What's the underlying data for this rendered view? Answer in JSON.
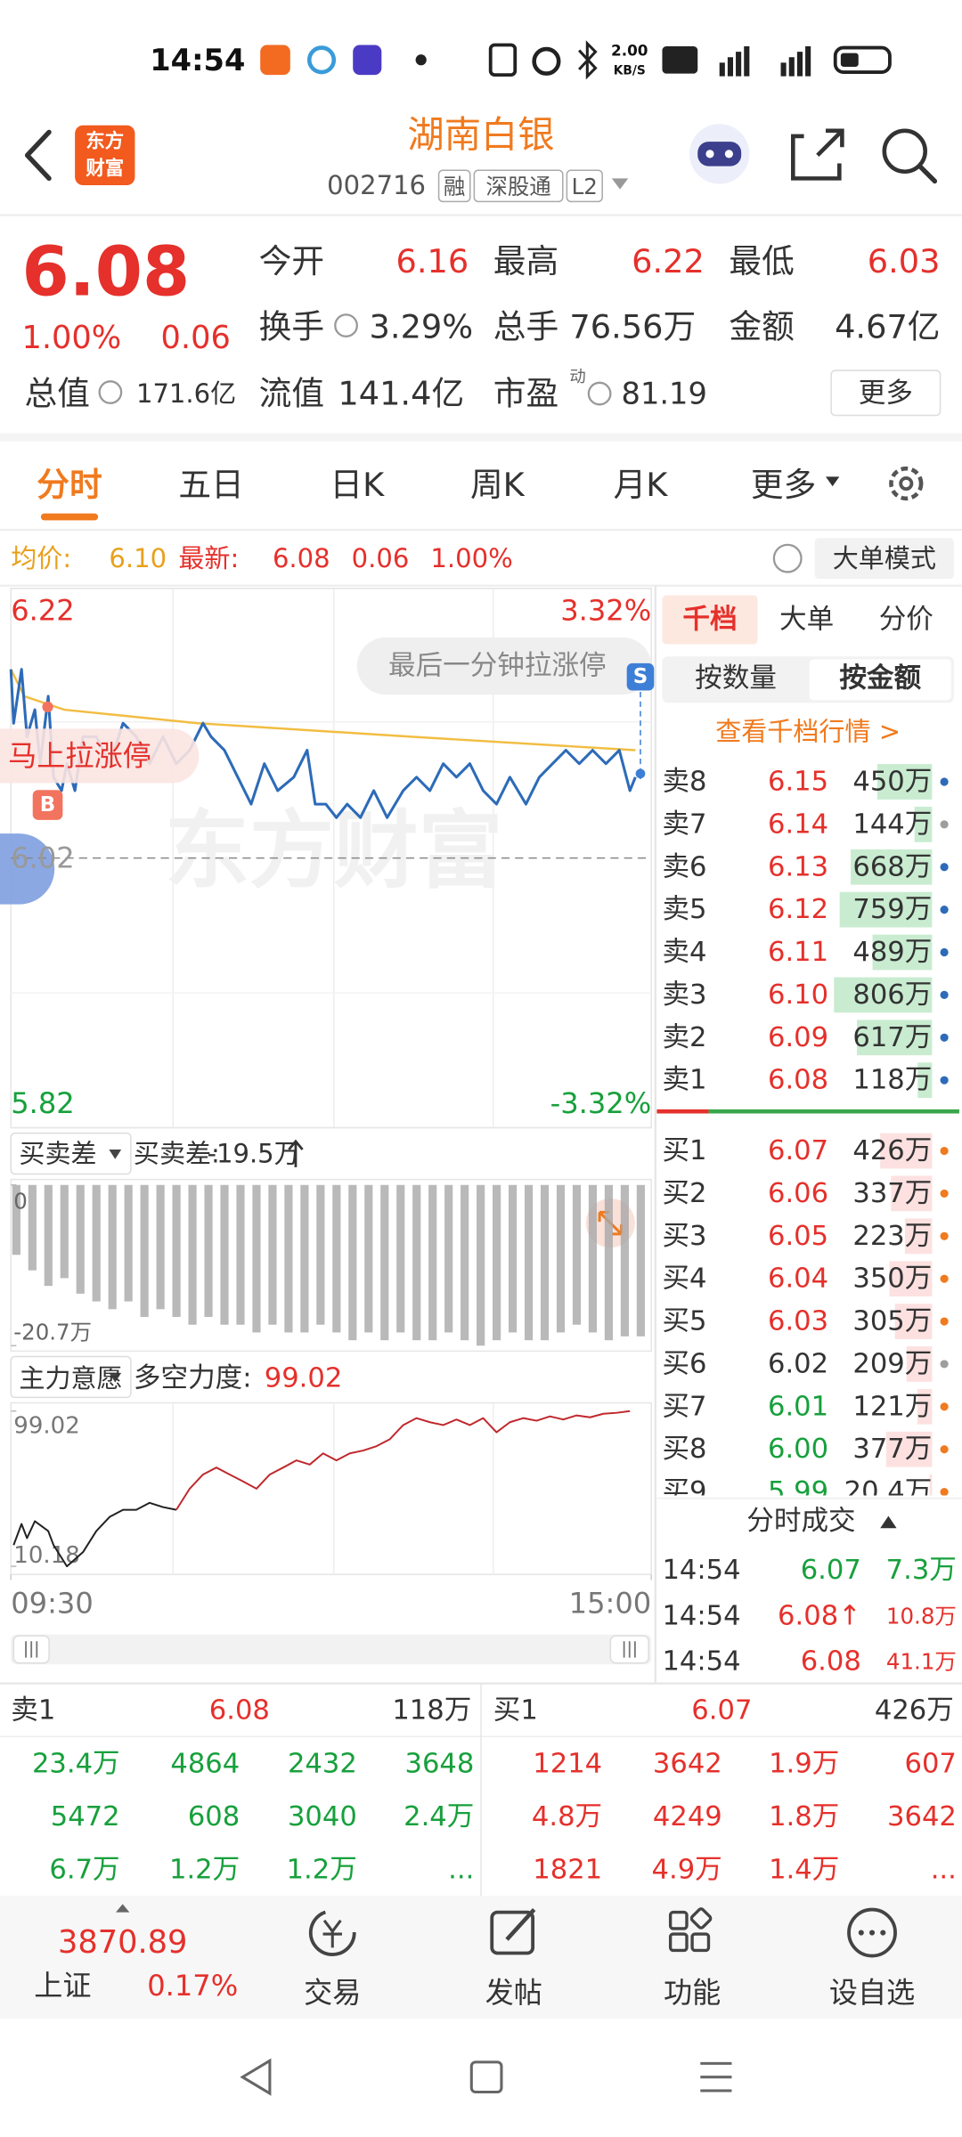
{
  "status_bar": {
    "time": "14:54",
    "net_speed": [
      "2.00",
      "KB/S"
    ]
  },
  "header": {
    "logo": [
      "东方",
      "财富"
    ],
    "title": "湖南白银",
    "code": "002716",
    "tags": [
      "融",
      "深股通",
      "L2"
    ]
  },
  "quote": {
    "price": "6.08",
    "change_pct": "1.00%",
    "change": "0.06",
    "fields": [
      {
        "label": "今开",
        "value": "6.16"
      },
      {
        "label": "最高",
        "value": "6.22"
      },
      {
        "label": "最低",
        "value": "6.03"
      },
      {
        "label": "换手",
        "value": "3.29%"
      },
      {
        "label": "总手",
        "value": "76.56万"
      },
      {
        "label": "金额",
        "value": "4.67亿"
      },
      {
        "label": "总值",
        "value": "171.6亿"
      },
      {
        "label": "流值",
        "value": "141.4亿"
      },
      {
        "label": "市盈",
        "value": "81.19"
      }
    ],
    "pe_note": "动",
    "more": "更多"
  },
  "tabs": {
    "items": [
      "分时",
      "五日",
      "日K",
      "周K",
      "月K",
      "更多"
    ],
    "active": 0
  },
  "info_bar": {
    "avg_label": "均价:",
    "avg": "6.10",
    "latest_label": "最新:",
    "latest": "6.08",
    "change": "0.06",
    "change_pct": "1.00%",
    "mode": "大单模式"
  },
  "intraday_chart": {
    "type": "line",
    "xlim": [
      0,
      240
    ],
    "xticks": [
      {
        "value": 0,
        "label": "09:30"
      },
      {
        "value": 240,
        "label": "15:00"
      }
    ],
    "ylim": [
      5.82,
      6.22
    ],
    "yticks": [
      5.82,
      6.02,
      6.22
    ],
    "y2lim": [
      -3.32,
      3.32
    ],
    "y2ticks": [
      {
        "value": -3.32,
        "label": "-3.32%"
      },
      {
        "value": 3.32,
        "label": "3.32%"
      }
    ],
    "series": [
      {
        "color": "#2d6bb8",
        "x": [
          0,
          1,
          4,
          6,
          9,
          11,
          14,
          16,
          19,
          21,
          24,
          27,
          32,
          37,
          42,
          47,
          52,
          57,
          62,
          67,
          72,
          75,
          80,
          85,
          90,
          95,
          100,
          106,
          111,
          114,
          118,
          122,
          126,
          131,
          136,
          141,
          147,
          152,
          157,
          162,
          167,
          172,
          177,
          182,
          187,
          193,
          198,
          203,
          208,
          213,
          218,
          223,
          228,
          232,
          234
        ],
        "values": [
          6.16,
          6.12,
          6.16,
          6.11,
          6.13,
          6.09,
          6.14,
          6.08,
          6.07,
          6.09,
          6.07,
          6.11,
          6.11,
          6.09,
          6.12,
          6.11,
          6.09,
          6.11,
          6.09,
          6.1,
          6.12,
          6.11,
          6.1,
          6.08,
          6.06,
          6.09,
          6.07,
          6.08,
          6.1,
          6.06,
          6.06,
          6.05,
          6.06,
          6.05,
          6.07,
          6.05,
          6.07,
          6.08,
          6.07,
          6.09,
          6.08,
          6.09,
          6.07,
          6.06,
          6.08,
          6.06,
          6.08,
          6.09,
          6.1,
          6.09,
          6.1,
          6.09,
          6.1,
          6.07,
          6.08
        ]
      },
      {
        "color": "#f2bd42",
        "x": [
          0,
          5,
          20,
          70,
          150,
          234
        ],
        "values": [
          6.16,
          6.14,
          6.13,
          6.12,
          6.11,
          6.1
        ]
      }
    ],
    "annotations": [
      "最后一分钟拉涨停",
      "马上拉涨停"
    ],
    "markers": [
      "B",
      "S"
    ],
    "watermark": "东方财富"
  },
  "buy_sell_chart": {
    "type": "bar",
    "selector": "买卖差",
    "label": "买卖差:",
    "current": "-19.5万",
    "ylim": [
      -20.7,
      0
    ],
    "yticks": [
      {
        "value": -20.7,
        "label": "-20.7万"
      },
      0
    ],
    "color": "#a8a8a8",
    "x": [
      0,
      6,
      12,
      18,
      24,
      30,
      36,
      42,
      48,
      54,
      60,
      66,
      72,
      78,
      84,
      90,
      96,
      102,
      108,
      114,
      120,
      126,
      132,
      138,
      144,
      150,
      156,
      162,
      168,
      174,
      180,
      186,
      192,
      198,
      204,
      210,
      216,
      222,
      228,
      234
    ],
    "values": [
      -9,
      -11,
      -13,
      -12,
      -14,
      -15,
      -16,
      -15,
      -17,
      -16,
      -17,
      -18,
      -17,
      -18,
      -18,
      -19,
      -18,
      -19,
      -19,
      -18,
      -19,
      -20,
      -19,
      -20,
      -19,
      -20,
      -20,
      -19,
      -20,
      -20.7,
      -20,
      -19,
      -20,
      -20,
      -19,
      -18,
      -19,
      -20,
      -19.5,
      -19.5
    ]
  },
  "force_chart": {
    "type": "line",
    "selector": "主力意愿",
    "label": "多空力度:",
    "current": "99.02",
    "ylim": [
      10.18,
      99.02
    ],
    "yticks": [
      10.18,
      99.02
    ],
    "series": [
      {
        "color": "#222222",
        "x": [
          1,
          4,
          6,
          9,
          14,
          16,
          21,
          27,
          32,
          37,
          42,
          47,
          52,
          57,
          62
        ],
        "values": [
          22.3,
          34.4,
          26.3,
          36.0,
          30.4,
          22.3,
          10.18,
          18.3,
          30.4,
          38.5,
          42.5,
          42.5,
          46.5,
          44.1,
          42.5
        ]
      },
      {
        "color": "#c0282d",
        "x": [
          62,
          67,
          72,
          77,
          82,
          87,
          92,
          97,
          102,
          107,
          112,
          117,
          122,
          127,
          132,
          137,
          142,
          147,
          152,
          157,
          162,
          167,
          172,
          177,
          182,
          187,
          192,
          197,
          202,
          207,
          212,
          217,
          222,
          227,
          232
        ],
        "values": [
          42.5,
          54.6,
          62.7,
          66.7,
          62.7,
          58.7,
          54.6,
          62.7,
          66.7,
          70.8,
          68.4,
          74.8,
          70.8,
          74.8,
          76.4,
          78.9,
          82.9,
          91.0,
          95.0,
          92.6,
          91.0,
          94.2,
          91.0,
          95.0,
          86.9,
          92.6,
          95.0,
          93.5,
          96.0,
          94.2,
          96.5,
          95.4,
          97.5,
          98.0,
          99.02
        ]
      }
    ]
  },
  "order_book": {
    "tabs": [
      "千档",
      "大单",
      "分价"
    ],
    "active_tab": 0,
    "modes": [
      "按数量",
      "按金额"
    ],
    "active_mode": 1,
    "link": "查看千档行情 >",
    "ask_bar_color": "#c9ecd1",
    "bid_bar_color": "#fde1e1",
    "asks": [
      {
        "label": "卖8",
        "price": "6.15",
        "amount": {
          "value": 450,
          "label": "450万"
        },
        "dot": "#2d6bb8"
      },
      {
        "label": "卖7",
        "price": "6.14",
        "amount": {
          "value": 144,
          "label": "144万"
        },
        "dot": "#9e9e9e"
      },
      {
        "label": "卖6",
        "price": "6.13",
        "amount": {
          "value": 668,
          "label": "668万"
        },
        "dot": "#2d6bb8"
      },
      {
        "label": "卖5",
        "price": "6.12",
        "amount": {
          "value": 759,
          "label": "759万"
        },
        "dot": "#2d6bb8"
      },
      {
        "label": "卖4",
        "price": "6.11",
        "amount": {
          "value": 489,
          "label": "489万"
        },
        "dot": "#2d6bb8"
      },
      {
        "label": "卖3",
        "price": "6.10",
        "amount": {
          "value": 806,
          "label": "806万"
        },
        "dot": "#2d6bb8"
      },
      {
        "label": "卖2",
        "price": "6.09",
        "amount": {
          "value": 617,
          "label": "617万"
        },
        "dot": "#2d6bb8"
      },
      {
        "label": "卖1",
        "price": "6.08",
        "amount": {
          "value": 118,
          "label": "118万"
        },
        "dot": "#2d6bb8"
      }
    ],
    "bids": [
      {
        "label": "买1",
        "price": "6.07",
        "amount": {
          "value": 426,
          "label": "426万"
        },
        "dot": "#f07a1e"
      },
      {
        "label": "买2",
        "price": "6.06",
        "amount": {
          "value": 337,
          "label": "337万"
        },
        "dot": "#f07a1e"
      },
      {
        "label": "买3",
        "price": "6.05",
        "amount": {
          "value": 223,
          "label": "223万"
        },
        "dot": "#f07a1e"
      },
      {
        "label": "买4",
        "price": "6.04",
        "amount": {
          "value": 350,
          "label": "350万"
        },
        "dot": "#f07a1e"
      },
      {
        "label": "买5",
        "price": "6.03",
        "amount": {
          "value": 305,
          "label": "305万"
        },
        "dot": "#f07a1e"
      },
      {
        "label": "买6",
        "price": "6.02",
        "amount": {
          "value": 209,
          "label": "209万"
        },
        "dot": "#9e9e9e"
      },
      {
        "label": "买7",
        "price": "6.01",
        "amount": {
          "value": 121,
          "label": "121万"
        },
        "dot": "#f07a1e"
      },
      {
        "label": "买8",
        "price": "6.00",
        "amount": {
          "value": 377,
          "label": "377万"
        },
        "dot": "#f07a1e"
      },
      {
        "label": "买9",
        "price": "5.99",
        "amount": {
          "value": 20.4,
          "label": "20.4万"
        },
        "dot": "#f07a1e"
      }
    ]
  },
  "trades": {
    "title": "分时成交",
    "rows": [
      {
        "time": "14:54",
        "price": "6.07",
        "amount": "7.3万",
        "color": "#17a03c"
      },
      {
        "time": "14:54",
        "price": "6.08↑",
        "amount": "10.8万",
        "color": "#e5302b"
      },
      {
        "time": "14:54",
        "price": "6.08",
        "amount": "41.1万",
        "color": "#e5302b"
      }
    ]
  },
  "level1": {
    "sell": {
      "label": "卖1",
      "price": "6.08",
      "amount": "118万",
      "rows": [
        [
          "23.4万",
          "4864",
          "2432",
          "3648"
        ],
        [
          "5472",
          "608",
          "3040",
          "2.4万"
        ],
        [
          "6.7万",
          "1.2万",
          "1.2万",
          "..."
        ]
      ]
    },
    "buy": {
      "label": "买1",
      "price": "6.07",
      "amount": "426万",
      "rows": [
        [
          "1214",
          "3642",
          "1.9万",
          "607"
        ],
        [
          "4.8万",
          "4249",
          "1.8万",
          "3642"
        ],
        [
          "1821",
          "4.9万",
          "1.4万",
          "..."
        ]
      ]
    }
  },
  "bottom_nav": {
    "index": {
      "value": "3870.89",
      "name": "上证",
      "change": "0.17%"
    },
    "items": [
      "交易",
      "发帖",
      "功能",
      "设自选"
    ]
  }
}
